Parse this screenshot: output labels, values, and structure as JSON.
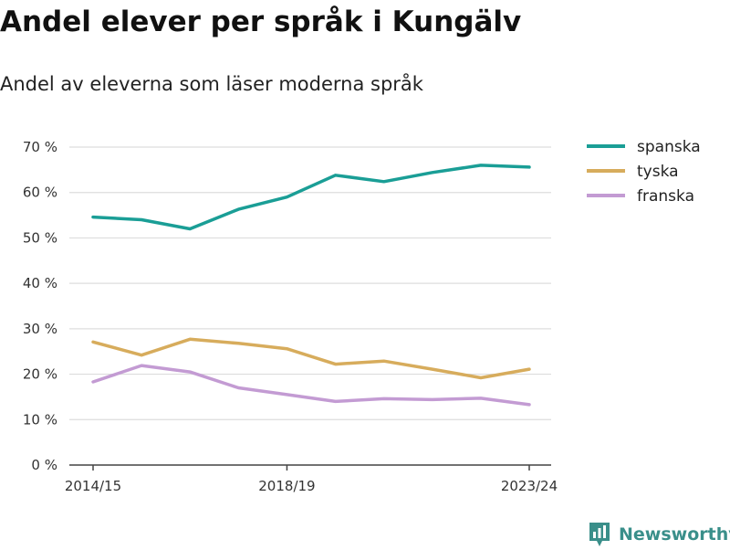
{
  "header": {
    "title": "Andel elever per språk i Kungälv",
    "subtitle": "Andel av eleverna som läser moderna språk"
  },
  "brand": {
    "name": "Newsworthy",
    "icon": "newsworthy-logo-icon",
    "color": "#3a8f8a"
  },
  "chart_data": {
    "type": "line",
    "title": "Andel elever per språk i Kungälv",
    "subtitle": "Andel av eleverna som läser moderna språk",
    "xlabel": "",
    "ylabel": "",
    "x": [
      "2014/15",
      "2015/16",
      "2016/17",
      "2017/18",
      "2018/19",
      "2019/20",
      "2020/21",
      "2021/22",
      "2022/23",
      "2023/24"
    ],
    "x_tick_labels": [
      "2014/15",
      "",
      "",
      "",
      "2018/19",
      "",
      "",
      "",
      "",
      "2023/24"
    ],
    "y_ticks": [
      0,
      10,
      20,
      30,
      40,
      50,
      60,
      70
    ],
    "y_tick_labels": [
      "0 %",
      "10 %",
      "20 %",
      "30 %",
      "40 %",
      "50 %",
      "60 %",
      "70 %"
    ],
    "ylim": [
      0,
      70
    ],
    "grid": true,
    "legend_position": "right",
    "series": [
      {
        "name": "spanska",
        "color": "#1a9e96",
        "values": [
          54.6,
          54.0,
          52.0,
          56.3,
          59.0,
          63.8,
          62.4,
          64.4,
          66.0,
          65.6
        ]
      },
      {
        "name": "tyska",
        "color": "#d7ac5c",
        "values": [
          27.1,
          24.2,
          27.7,
          26.8,
          25.6,
          22.2,
          22.9,
          21.1,
          19.2,
          21.1
        ]
      },
      {
        "name": "franska",
        "color": "#c39bd3",
        "values": [
          18.3,
          21.9,
          20.5,
          17.0,
          15.5,
          14.0,
          14.6,
          14.4,
          14.7,
          13.3
        ]
      }
    ]
  }
}
